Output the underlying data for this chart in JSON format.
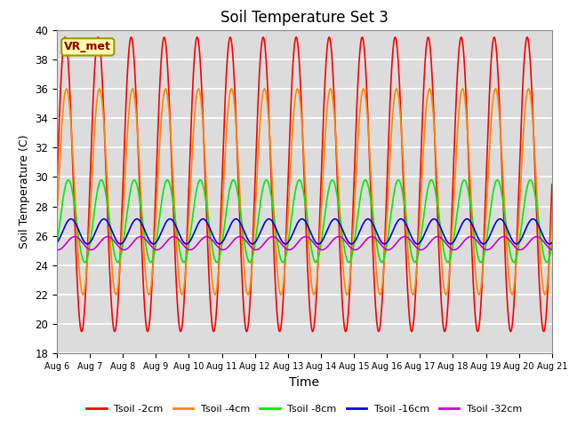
{
  "title": "Soil Temperature Set 3",
  "xlabel": "Time",
  "ylabel": "Soil Temperature (C)",
  "ylim": [
    18,
    40
  ],
  "yticks": [
    18,
    20,
    22,
    24,
    26,
    28,
    30,
    32,
    34,
    36,
    38,
    40
  ],
  "date_start": 6,
  "date_end": 21,
  "annotation": "VR_met",
  "bg_color": "#dcdcdc",
  "series": [
    {
      "label": "Tsoil -2cm",
      "color": "#ff0000",
      "mean": 29.5,
      "amplitude": 10.0,
      "phase_shift": 0.0
    },
    {
      "label": "Tsoil -4cm",
      "color": "#ff8800",
      "mean": 29.0,
      "amplitude": 7.0,
      "phase_shift": 0.25
    },
    {
      "label": "Tsoil -8cm",
      "color": "#00ee00",
      "mean": 27.0,
      "amplitude": 2.8,
      "phase_shift": 0.6
    },
    {
      "label": "Tsoil -16cm",
      "color": "#0000ee",
      "mean": 26.3,
      "amplitude": 0.85,
      "phase_shift": 1.1
    },
    {
      "label": "Tsoil -32cm",
      "color": "#cc00cc",
      "mean": 25.5,
      "amplitude": 0.45,
      "phase_shift": 1.8
    }
  ],
  "xtick_labels": [
    "Aug 6",
    "Aug 7",
    "Aug 8",
    "Aug 9",
    "Aug 10",
    "Aug 11",
    "Aug 12",
    "Aug 13",
    "Aug 14",
    "Aug 15",
    "Aug 16",
    "Aug 17",
    "Aug 18",
    "Aug 19",
    "Aug 20",
    "Aug 21"
  ],
  "xtick_positions": [
    6,
    7,
    8,
    9,
    10,
    11,
    12,
    13,
    14,
    15,
    16,
    17,
    18,
    19,
    20,
    21
  ]
}
